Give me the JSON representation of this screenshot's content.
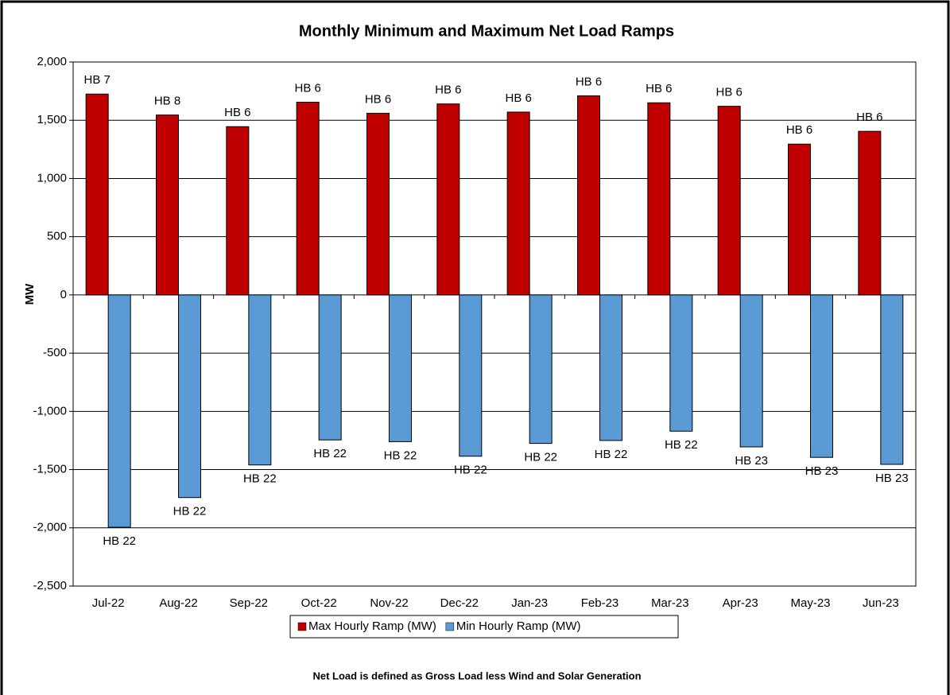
{
  "chart_data": {
    "type": "bar",
    "title": "Monthly Minimum and Maximum Net Load Ramps",
    "y_label": "MW",
    "footnote": "Net Load is defined as Gross Load less Wind and Solar Generation",
    "categories": [
      "Jul-22",
      "Aug-22",
      "Sep-22",
      "Oct-22",
      "Nov-22",
      "Dec-22",
      "Jan-23",
      "Feb-23",
      "Mar-23",
      "Apr-23",
      "May-23",
      "Jun-23"
    ],
    "series": [
      {
        "name": "Max Hourly Ramp (MW)",
        "color": "#c00000",
        "values": [
          1725,
          1545,
          1445,
          1655,
          1560,
          1640,
          1570,
          1710,
          1650,
          1620,
          1295,
          1405
        ],
        "annotations": [
          "HB 7",
          "HB 8",
          "HB 6",
          "HB 6",
          "HB 6",
          "HB 6",
          "HB 6",
          "HB 6",
          "HB 6",
          "HB 6",
          "HB 6",
          "HB 6"
        ]
      },
      {
        "name": "Min Hourly Ramp (MW)",
        "color": "#5b9bd5",
        "values": [
          -1995,
          -1740,
          -1460,
          -1245,
          -1260,
          -1385,
          -1275,
          -1250,
          -1170,
          -1305,
          -1395,
          -1455
        ],
        "annotations": [
          "HB 22",
          "HB 22",
          "HB 22",
          "HB 22",
          "HB 22",
          "HB 22",
          "HB 22",
          "HB 22",
          "HB 22",
          "HB 23",
          "HB 23",
          "HB 23"
        ]
      }
    ],
    "ylim": [
      -2500,
      2000
    ],
    "yticks": [
      {
        "value": -2500,
        "label": "-2,500"
      },
      {
        "value": -2000,
        "label": "-2,000"
      },
      {
        "value": -1500,
        "label": "-1,500"
      },
      {
        "value": -1000,
        "label": "-1,000"
      },
      -500,
      0,
      500,
      {
        "value": 1000,
        "label": "1,000"
      },
      {
        "value": 1500,
        "label": "1,500"
      },
      {
        "value": 2000,
        "label": "2,000"
      }
    ],
    "grid": true,
    "legend": "bottom"
  }
}
